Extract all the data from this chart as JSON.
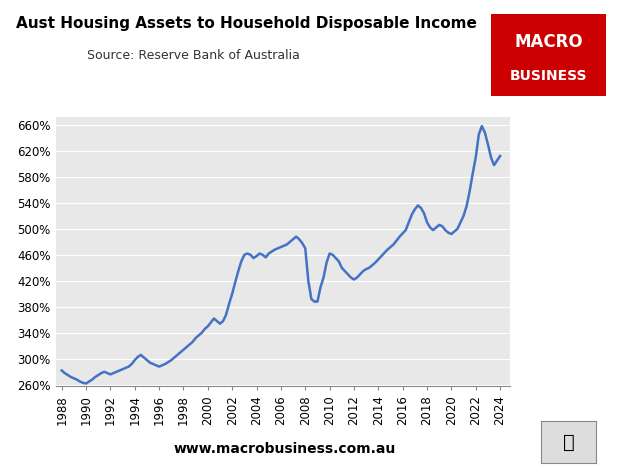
{
  "title": "Aust Housing Assets to Household Disposable Income",
  "subtitle": "Source: Reserve Bank of Australia",
  "footer": "www.macrobusiness.com.au",
  "line_color": "#4472C4",
  "line_width": 1.8,
  "bg_color": "#E8E8E8",
  "fig_bg_color": "#FFFFFF",
  "ylim": [
    258,
    672
  ],
  "yticks": [
    260,
    300,
    340,
    380,
    420,
    460,
    500,
    540,
    580,
    620,
    660
  ],
  "xlim": [
    1987.5,
    2024.8
  ],
  "xticks": [
    1988,
    1990,
    1992,
    1994,
    1996,
    1998,
    2000,
    2002,
    2004,
    2006,
    2008,
    2010,
    2012,
    2014,
    2016,
    2018,
    2020,
    2022,
    2024
  ],
  "years": [
    1988.0,
    1988.25,
    1988.5,
    1988.75,
    1989.0,
    1989.25,
    1989.5,
    1989.75,
    1990.0,
    1990.25,
    1990.5,
    1990.75,
    1991.0,
    1991.25,
    1991.5,
    1991.75,
    1992.0,
    1992.25,
    1992.5,
    1992.75,
    1993.0,
    1993.25,
    1993.5,
    1993.75,
    1994.0,
    1994.25,
    1994.5,
    1994.75,
    1995.0,
    1995.25,
    1995.5,
    1995.75,
    1996.0,
    1996.25,
    1996.5,
    1996.75,
    1997.0,
    1997.25,
    1997.5,
    1997.75,
    1998.0,
    1998.25,
    1998.5,
    1998.75,
    1999.0,
    1999.25,
    1999.5,
    1999.75,
    2000.0,
    2000.25,
    2000.5,
    2000.75,
    2001.0,
    2001.25,
    2001.5,
    2001.75,
    2002.0,
    2002.25,
    2002.5,
    2002.75,
    2003.0,
    2003.25,
    2003.5,
    2003.75,
    2004.0,
    2004.25,
    2004.5,
    2004.75,
    2005.0,
    2005.25,
    2005.5,
    2005.75,
    2006.0,
    2006.25,
    2006.5,
    2006.75,
    2007.0,
    2007.25,
    2007.5,
    2007.75,
    2008.0,
    2008.25,
    2008.5,
    2008.75,
    2009.0,
    2009.25,
    2009.5,
    2009.75,
    2010.0,
    2010.25,
    2010.5,
    2010.75,
    2011.0,
    2011.25,
    2011.5,
    2011.75,
    2012.0,
    2012.25,
    2012.5,
    2012.75,
    2013.0,
    2013.25,
    2013.5,
    2013.75,
    2014.0,
    2014.25,
    2014.5,
    2014.75,
    2015.0,
    2015.25,
    2015.5,
    2015.75,
    2016.0,
    2016.25,
    2016.5,
    2016.75,
    2017.0,
    2017.25,
    2017.5,
    2017.75,
    2018.0,
    2018.25,
    2018.5,
    2018.75,
    2019.0,
    2019.25,
    2019.5,
    2019.75,
    2020.0,
    2020.25,
    2020.5,
    2020.75,
    2021.0,
    2021.25,
    2021.5,
    2021.75,
    2022.0,
    2022.25,
    2022.5,
    2022.75,
    2023.0,
    2023.25,
    2023.5,
    2023.75,
    2024.0
  ],
  "values": [
    282,
    278,
    275,
    272,
    270,
    268,
    265,
    263,
    262,
    265,
    268,
    272,
    275,
    278,
    280,
    278,
    276,
    278,
    280,
    282,
    284,
    286,
    288,
    292,
    298,
    303,
    306,
    302,
    298,
    294,
    292,
    290,
    288,
    290,
    292,
    295,
    298,
    302,
    306,
    310,
    314,
    318,
    322,
    326,
    332,
    336,
    340,
    346,
    350,
    356,
    362,
    358,
    354,
    358,
    368,
    385,
    400,
    418,
    435,
    450,
    460,
    462,
    460,
    455,
    458,
    462,
    460,
    456,
    462,
    465,
    468,
    470,
    472,
    474,
    476,
    480,
    484,
    488,
    484,
    478,
    470,
    420,
    392,
    388,
    388,
    410,
    425,
    448,
    462,
    460,
    455,
    450,
    440,
    435,
    430,
    425,
    422,
    425,
    430,
    435,
    438,
    440,
    444,
    448,
    453,
    458,
    463,
    468,
    472,
    476,
    482,
    488,
    493,
    498,
    510,
    522,
    530,
    536,
    532,
    524,
    510,
    502,
    498,
    502,
    506,
    504,
    498,
    494,
    492,
    496,
    500,
    510,
    520,
    535,
    558,
    585,
    610,
    645,
    658,
    648,
    630,
    610,
    598,
    605,
    612
  ],
  "logo_color": "#CC0000",
  "logo_text1": "MACRO",
  "logo_text2": "BUSINESS",
  "title_fontsize": 11,
  "subtitle_fontsize": 9,
  "tick_fontsize": 8.5,
  "footer_fontsize": 10
}
